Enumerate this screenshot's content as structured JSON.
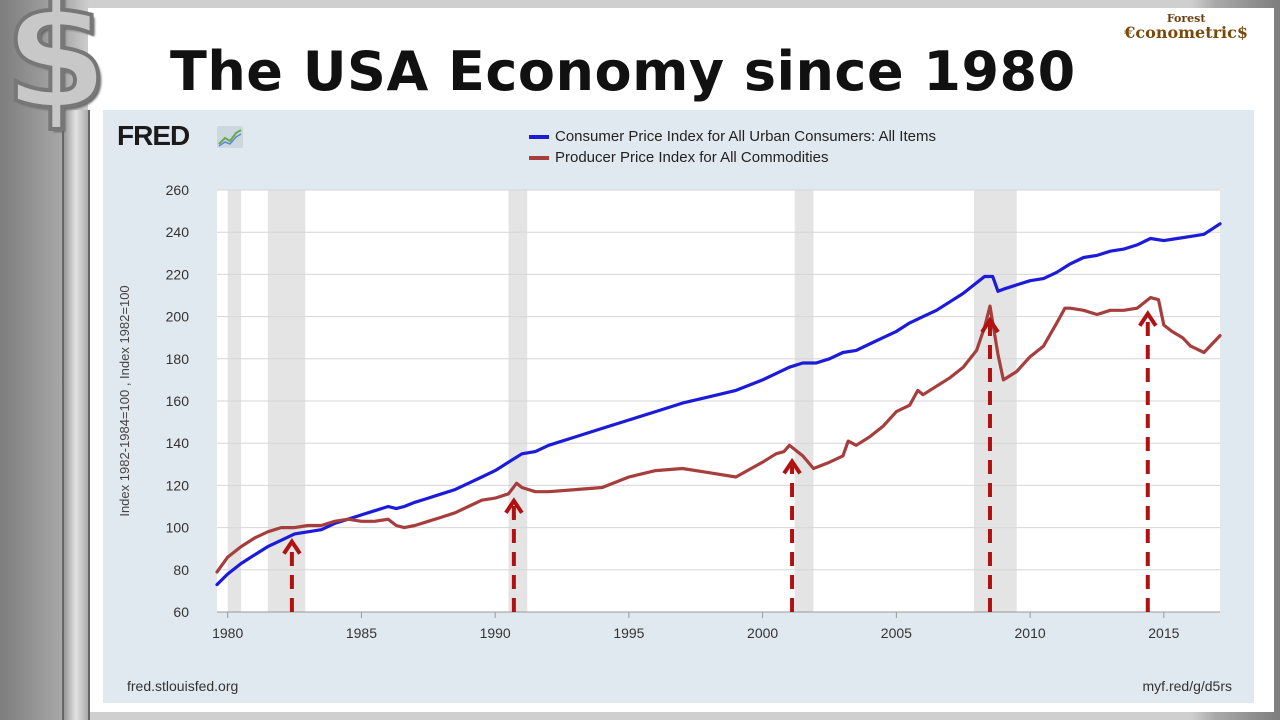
{
  "slide": {
    "title": "The USA Economy since 1980",
    "logo_top": "Forest",
    "logo_main": "€conometric$",
    "dollar_glyph": "$"
  },
  "fred": {
    "logo_text": "FRED",
    "source_left": "fred.stlouisfed.org",
    "source_right": "myf.red/g/d5rs"
  },
  "colors": {
    "cpi": "#1b1bd9",
    "ppi": "#a63e3e",
    "recession": "#e4e4e4",
    "arrow": "#b01212"
  },
  "chart_data": {
    "type": "line",
    "ylabel": "Index 1982-1984=100 , Index 1982=100",
    "xlabel": "",
    "xlim": [
      1979.6,
      2017.1
    ],
    "ylim": [
      60,
      260
    ],
    "yticks": [
      60,
      80,
      100,
      120,
      140,
      160,
      180,
      200,
      220,
      240,
      260
    ],
    "xticks": [
      1980,
      1985,
      1990,
      1995,
      2000,
      2005,
      2010,
      2015
    ],
    "recessions": [
      [
        1980.0,
        1980.5
      ],
      [
        1981.5,
        1982.9
      ],
      [
        1990.5,
        1991.2
      ],
      [
        2001.2,
        2001.9
      ],
      [
        2007.9,
        2009.5
      ]
    ],
    "arrows_at": [
      1982.4,
      1990.7,
      2001.1,
      2008.5,
      2014.4
    ],
    "series": [
      {
        "name": "Consumer Price Index for All Urban Consumers: All Items",
        "x": [
          1979.6,
          1980,
          1980.5,
          1981,
          1981.5,
          1982,
          1982.5,
          1983,
          1983.5,
          1984,
          1984.5,
          1985,
          1985.5,
          1986,
          1986.3,
          1986.6,
          1987,
          1987.5,
          1988,
          1988.5,
          1989,
          1989.5,
          1990,
          1990.5,
          1991,
          1991.5,
          1992,
          1993,
          1994,
          1995,
          1996,
          1997,
          1998,
          1999,
          2000,
          2000.5,
          2001,
          2001.5,
          2002,
          2002.5,
          2003,
          2003.5,
          2004,
          2004.5,
          2005,
          2005.5,
          2006,
          2006.5,
          2007,
          2007.5,
          2008,
          2008.3,
          2008.6,
          2008.8,
          2009,
          2009.5,
          2010,
          2010.5,
          2011,
          2011.5,
          2012,
          2012.5,
          2013,
          2013.5,
          2014,
          2014.5,
          2015,
          2015.5,
          2016,
          2016.5,
          2017.1
        ],
        "y": [
          73,
          78,
          83,
          87,
          91,
          94,
          97,
          98,
          99,
          102,
          104,
          106,
          108,
          110,
          109,
          110,
          112,
          114,
          116,
          118,
          121,
          124,
          127,
          131,
          135,
          136,
          139,
          143,
          147,
          151,
          155,
          159,
          162,
          165,
          170,
          173,
          176,
          178,
          178,
          180,
          183,
          184,
          187,
          190,
          193,
          197,
          200,
          203,
          207,
          211,
          216,
          219,
          219,
          212,
          213,
          215,
          217,
          218,
          221,
          225,
          228,
          229,
          231,
          232,
          234,
          237,
          236,
          237,
          238,
          239,
          244
        ]
      },
      {
        "name": "Producer Price Index for All Commodities",
        "x": [
          1979.6,
          1980,
          1980.5,
          1981,
          1981.5,
          1982,
          1982.5,
          1983,
          1983.5,
          1984,
          1984.5,
          1985,
          1985.5,
          1986,
          1986.3,
          1986.6,
          1987,
          1987.5,
          1988,
          1988.5,
          1989,
          1989.5,
          1990,
          1990.5,
          1990.8,
          1991,
          1991.5,
          1992,
          1993,
          1994,
          1995,
          1996,
          1997,
          1998,
          1999,
          2000,
          2000.5,
          2000.8,
          2001,
          2001.5,
          2001.9,
          2002.5,
          2003,
          2003.2,
          2003.5,
          2004,
          2004.5,
          2005,
          2005.5,
          2005.8,
          2006,
          2006.5,
          2007,
          2007.5,
          2008,
          2008.3,
          2008.5,
          2008.8,
          2009,
          2009.5,
          2010,
          2010.5,
          2011,
          2011.3,
          2011.5,
          2012,
          2012.5,
          2013,
          2013.5,
          2014,
          2014.5,
          2014.8,
          2015,
          2015.3,
          2015.7,
          2016,
          2016.5,
          2017.1
        ],
        "y": [
          79,
          86,
          91,
          95,
          98,
          100,
          100,
          101,
          101,
          103,
          104,
          103,
          103,
          104,
          101,
          100,
          101,
          103,
          105,
          107,
          110,
          113,
          114,
          116,
          121,
          119,
          117,
          117,
          118,
          119,
          124,
          127,
          128,
          126,
          124,
          131,
          135,
          136,
          139,
          134,
          128,
          131,
          134,
          141,
          139,
          143,
          148,
          155,
          158,
          165,
          163,
          167,
          171,
          176,
          184,
          195,
          205,
          182,
          170,
          174,
          181,
          186,
          197,
          204,
          204,
          203,
          201,
          203,
          203,
          204,
          209,
          208,
          196,
          193,
          190,
          186,
          183,
          191
        ]
      }
    ]
  }
}
